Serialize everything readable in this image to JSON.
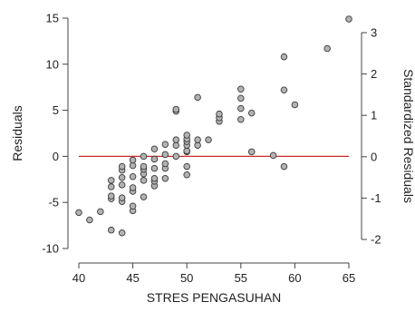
{
  "chart_data": {
    "type": "scatter",
    "title": "",
    "xlabel": "STRES PENGASUHAN",
    "ylabel": "Residuals",
    "y2label": "Standardized Residuals",
    "xlim": [
      40,
      65
    ],
    "ylim": [
      -10,
      15
    ],
    "y2lim": [
      -2,
      3
    ],
    "x_ticks": [
      40,
      45,
      50,
      55,
      60,
      65
    ],
    "y_ticks": [
      -10,
      -5,
      0,
      5,
      10,
      15
    ],
    "y2_ticks": [
      -2,
      -1,
      0,
      1,
      2,
      3
    ],
    "reference_line_y": 0,
    "grid": false,
    "legend": "none",
    "colors": {
      "points_fill": "#b3b3b3",
      "points_stroke": "#3a3a3a",
      "reference_line": "#cc2b2b",
      "axis": "#444444"
    },
    "series": [
      {
        "points": [
          [
            40,
            -6.1
          ],
          [
            41,
            -6.9
          ],
          [
            42,
            -6.0
          ],
          [
            43,
            -8.0
          ],
          [
            43,
            -4.6
          ],
          [
            43,
            -4.3
          ],
          [
            43,
            -3.3
          ],
          [
            43,
            -2.6
          ],
          [
            44,
            -8.3
          ],
          [
            44,
            -4.9
          ],
          [
            44,
            -4.5
          ],
          [
            44,
            -3.1
          ],
          [
            44,
            -2.3
          ],
          [
            44,
            -1.5
          ],
          [
            44,
            -1.1
          ],
          [
            45,
            -5.9
          ],
          [
            45,
            -5.4
          ],
          [
            45,
            -3.8
          ],
          [
            45,
            -3.4
          ],
          [
            45,
            -2.2
          ],
          [
            45,
            -1.0
          ],
          [
            45,
            -0.4
          ],
          [
            46,
            -4.4
          ],
          [
            46,
            -2.6
          ],
          [
            46,
            -1.9
          ],
          [
            46,
            -1.4
          ],
          [
            46,
            -1.1
          ],
          [
            46,
            0.0
          ],
          [
            47,
            -3.2
          ],
          [
            47,
            -2.7
          ],
          [
            47,
            -2.4
          ],
          [
            47,
            -1.3
          ],
          [
            47,
            -0.3
          ],
          [
            47,
            0.8
          ],
          [
            48,
            -2.4
          ],
          [
            48,
            -1.3
          ],
          [
            48,
            -0.8
          ],
          [
            48,
            0.2
          ],
          [
            48,
            1.3
          ],
          [
            49,
            0.0
          ],
          [
            49,
            1.2
          ],
          [
            49,
            1.8
          ],
          [
            49,
            4.9
          ],
          [
            49,
            5.1
          ],
          [
            50,
            -2.0
          ],
          [
            50,
            -1.1
          ],
          [
            50,
            0.5
          ],
          [
            50,
            0.6
          ],
          [
            50,
            1.2
          ],
          [
            50,
            1.6
          ],
          [
            50,
            1.9
          ],
          [
            50,
            2.3
          ],
          [
            51,
            1.2
          ],
          [
            51,
            1.8
          ],
          [
            51,
            6.4
          ],
          [
            52,
            1.8
          ],
          [
            53,
            3.8
          ],
          [
            53,
            4.2
          ],
          [
            53,
            4.6
          ],
          [
            55,
            4.0
          ],
          [
            55,
            5.2
          ],
          [
            55,
            6.3
          ],
          [
            55,
            7.3
          ],
          [
            56,
            0.5
          ],
          [
            56,
            4.7
          ],
          [
            58,
            0.1
          ],
          [
            59,
            -1.1
          ],
          [
            59,
            7.2
          ],
          [
            59,
            10.8
          ],
          [
            60,
            5.6
          ],
          [
            63,
            11.7
          ],
          [
            65,
            14.9
          ]
        ]
      }
    ]
  }
}
